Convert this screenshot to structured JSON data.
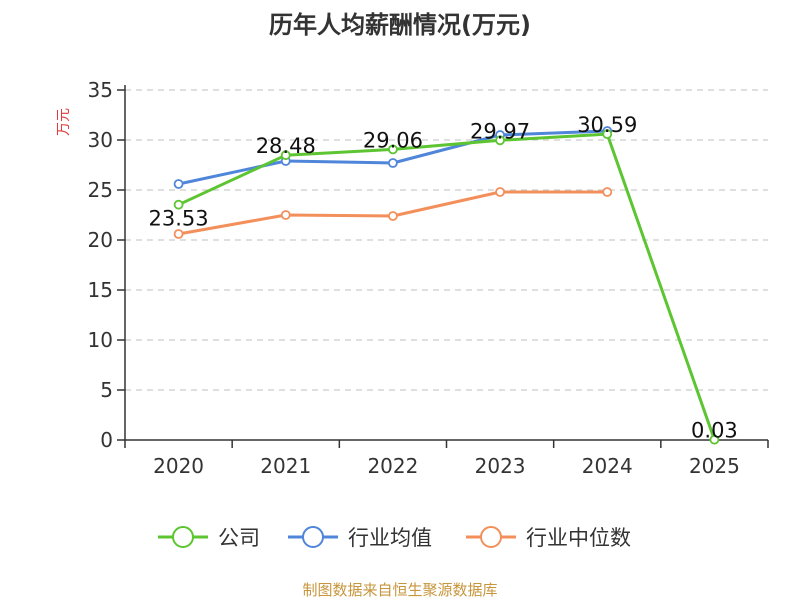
{
  "chart_data": {
    "type": "line",
    "title": "历年人均薪酬情况(万元)",
    "ylabel": "万元",
    "xlabel": "",
    "categories": [
      "2020",
      "2021",
      "2022",
      "2023",
      "2024",
      "2025"
    ],
    "ylim": [
      0,
      35
    ],
    "yticks": [
      0,
      5,
      10,
      15,
      20,
      25,
      30,
      35
    ],
    "grid": true,
    "legend_position": "bottom",
    "series": [
      {
        "name": "公司",
        "color": "#5cc531",
        "values": [
          23.53,
          28.48,
          29.06,
          29.97,
          30.59,
          0.03
        ],
        "labels": [
          "23.53",
          "28.48",
          "29.06",
          "29.97",
          "30.59",
          "0.03"
        ]
      },
      {
        "name": "行业均值",
        "color": "#4f86d9",
        "values": [
          25.6,
          27.9,
          27.7,
          30.5,
          30.9,
          null
        ]
      },
      {
        "name": "行业中位数",
        "color": "#f38f5a",
        "values": [
          20.6,
          22.5,
          22.4,
          24.8,
          24.8,
          null
        ]
      }
    ]
  },
  "footer": {
    "source": "制图数据来自恒生聚源数据库"
  }
}
